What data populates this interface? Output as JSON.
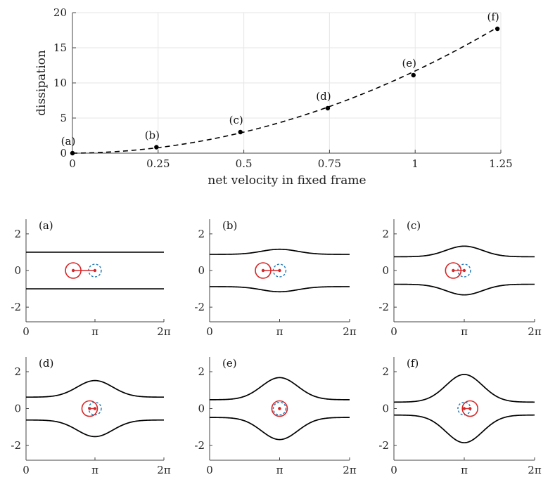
{
  "chart_data": [
    {
      "type": "line",
      "title": "",
      "xlabel": "net velocity in fixed frame",
      "ylabel": "dissipation",
      "xlim": [
        0,
        1.25
      ],
      "ylim": [
        0,
        20
      ],
      "xticks": [
        0,
        0.25,
        0.5,
        0.75,
        1,
        1.25
      ],
      "xtick_labels": [
        "0",
        "0.25",
        "0.5",
        "0.75",
        "1",
        "1.25"
      ],
      "yticks": [
        0,
        5,
        10,
        15,
        20
      ],
      "ytick_labels": [
        "0",
        "5",
        "10",
        "15",
        "20"
      ],
      "grid": true,
      "line_style": "dashed",
      "color": "#000000",
      "points": [
        {
          "label": "(a)",
          "x": 0.0,
          "y": 0.0
        },
        {
          "label": "(b)",
          "x": 0.245,
          "y": 0.85
        },
        {
          "label": "(c)",
          "x": 0.49,
          "y": 3.0
        },
        {
          "label": "(d)",
          "x": 0.745,
          "y": 6.4
        },
        {
          "label": "(e)",
          "x": 0.995,
          "y": 11.1
        },
        {
          "label": "(f)",
          "x": 1.24,
          "y": 17.7
        }
      ]
    },
    {
      "type": "line",
      "panels": [
        {
          "label": "(a)",
          "amplitude": 0.0,
          "base": 1.0,
          "big_circle_x": 2.15,
          "small_circle_x": 3.14
        },
        {
          "label": "(b)",
          "amplitude": 0.28,
          "base": 0.88,
          "big_circle_x": 2.4,
          "small_circle_x": 3.14
        },
        {
          "label": "(c)",
          "amplitude": 0.58,
          "base": 0.75,
          "big_circle_x": 2.65,
          "small_circle_x": 3.14
        },
        {
          "label": "(d)",
          "amplitude": 0.9,
          "base": 0.62,
          "big_circle_x": 2.9,
          "small_circle_x": 3.14
        },
        {
          "label": "(e)",
          "amplitude": 1.2,
          "base": 0.48,
          "big_circle_x": 3.14,
          "small_circle_x": 3.14
        },
        {
          "label": "(f)",
          "amplitude": 1.5,
          "base": 0.35,
          "big_circle_x": 3.4,
          "small_circle_x": 3.14
        }
      ],
      "xlim": [
        0,
        6.2832
      ],
      "ylim": [
        -2.8,
        2.8
      ],
      "xtick_labels": [
        "0",
        "π",
        "2π"
      ],
      "ytick_labels": [
        "2",
        "0",
        "-2"
      ],
      "big_circle_color": "#d62728",
      "small_circle_color": "#1f77b4"
    }
  ]
}
